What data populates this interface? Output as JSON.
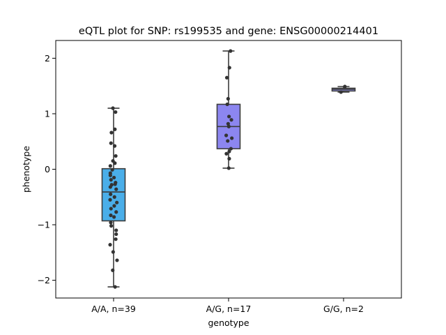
{
  "chart_data": {
    "type": "box",
    "title": "eQTL plot for SNP: rs199535 and gene: ENSG00000214401",
    "xlabel": "genotype",
    "ylabel": "phenotype",
    "ylim": [
      -2.32,
      2.32
    ],
    "yticks": [
      -2,
      -1,
      0,
      1,
      2
    ],
    "ytick_labels": [
      "−2",
      "−1",
      "0",
      "1",
      "2"
    ],
    "grid": false,
    "categories": [
      "A/A, n=39",
      "A/G, n=17",
      "G/G, n=2"
    ],
    "boxes": [
      {
        "category": "A/A, n=39",
        "color": "#4aaee9",
        "whisker_low": -2.12,
        "q1": -0.93,
        "median": -0.41,
        "q3": 0.01,
        "whisker_high": 1.1
      },
      {
        "category": "A/G, n=17",
        "color": "#8c86f0",
        "whisker_low": 0.02,
        "q1": 0.37,
        "median": 0.77,
        "q3": 1.17,
        "whisker_high": 2.13
      },
      {
        "category": "G/G, n=2",
        "color": "#9898f2",
        "whisker_low": 1.39,
        "q1": 1.41,
        "median": 1.44,
        "q3": 1.46,
        "whisker_high": 1.49
      }
    ],
    "points": [
      [
        [
          -0.03,
          1.1
        ],
        [
          0.09,
          1.03
        ],
        [
          0.06,
          0.72
        ],
        [
          -0.1,
          0.66
        ],
        [
          -0.12,
          0.47
        ],
        [
          0.05,
          0.42
        ],
        [
          0.1,
          0.24
        ],
        [
          -0.03,
          0.15
        ],
        [
          0.06,
          0.11
        ],
        [
          -0.15,
          0.06
        ],
        [
          -0.06,
          -0.01
        ],
        [
          -0.15,
          -0.07
        ],
        [
          -0.15,
          -0.11
        ],
        [
          0.02,
          -0.15
        ],
        [
          -0.12,
          -0.19
        ],
        [
          0.09,
          -0.24
        ],
        [
          0.07,
          -0.27
        ],
        [
          -0.09,
          -0.28
        ],
        [
          -0.15,
          -0.32
        ],
        [
          0.12,
          -0.36
        ],
        [
          -0.14,
          -0.45
        ],
        [
          0.04,
          -0.5
        ],
        [
          -0.16,
          -0.55
        ],
        [
          0.15,
          -0.6
        ],
        [
          0.03,
          -0.66
        ],
        [
          -0.12,
          -0.71
        ],
        [
          0.12,
          -0.77
        ],
        [
          -0.13,
          -0.83
        ],
        [
          0.02,
          -0.86
        ],
        [
          -0.13,
          -0.96
        ],
        [
          -0.11,
          -1.02
        ],
        [
          0.12,
          -1.1
        ],
        [
          0.12,
          -1.17
        ],
        [
          0.1,
          -1.26
        ],
        [
          -0.16,
          -1.36
        ],
        [
          -0.02,
          -1.49
        ],
        [
          0.16,
          -1.64
        ],
        [
          -0.04,
          -1.82
        ],
        [
          0.07,
          -2.12
        ]
      ],
      [
        [
          0.09,
          2.13
        ],
        [
          0.04,
          1.83
        ],
        [
          -0.08,
          1.65
        ],
        [
          -0.02,
          1.27
        ],
        [
          -0.06,
          1.17
        ],
        [
          0.02,
          0.95
        ],
        [
          0.13,
          0.89
        ],
        [
          -0.02,
          0.82
        ],
        [
          0.01,
          0.77
        ],
        [
          -0.11,
          0.61
        ],
        [
          0.15,
          0.56
        ],
        [
          -0.04,
          0.51
        ],
        [
          0.11,
          0.37
        ],
        [
          0.03,
          0.32
        ],
        [
          -0.1,
          0.28
        ],
        [
          0.03,
          0.19
        ],
        [
          0.01,
          0.02
        ]
      ],
      [
        [
          0.06,
          1.49
        ],
        [
          -0.12,
          1.39
        ]
      ]
    ]
  }
}
